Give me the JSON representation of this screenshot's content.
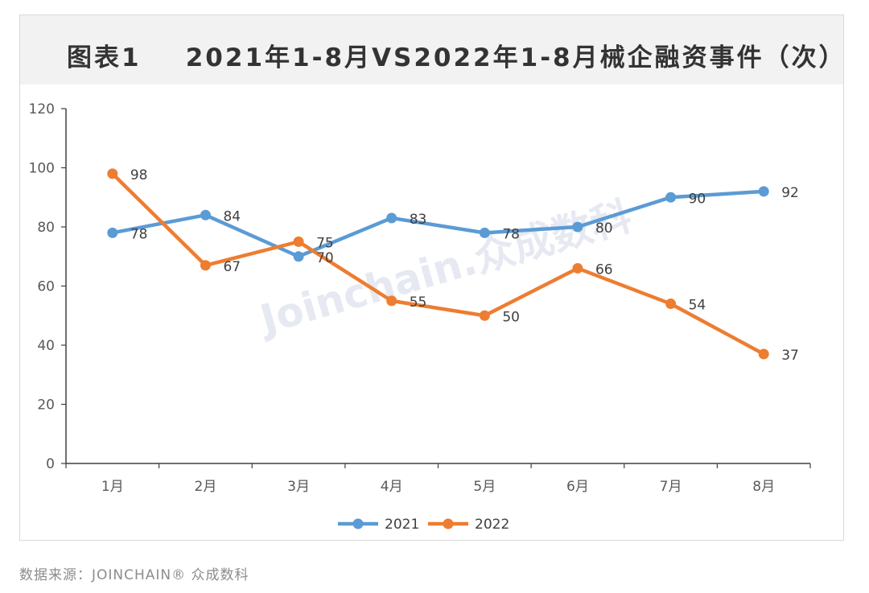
{
  "chart_data": {
    "type": "line",
    "title": "图表1    2021年1-8月VS2022年1-8月械企融资事件（次）",
    "categories": [
      "1月",
      "2月",
      "3月",
      "4月",
      "5月",
      "6月",
      "7月",
      "8月"
    ],
    "series": [
      {
        "name": "2021",
        "values": [
          78,
          84,
          70,
          83,
          78,
          80,
          90,
          92
        ],
        "color": "#5b9bd5"
      },
      {
        "name": "2022",
        "values": [
          98,
          67,
          75,
          55,
          50,
          66,
          54,
          37
        ],
        "color": "#ed7d31"
      }
    ],
    "ylim": [
      0,
      120
    ],
    "yticks": [
      0,
      20,
      40,
      60,
      80,
      100,
      120
    ],
    "xlabel": "",
    "ylabel": "",
    "legend": "bottom-center",
    "grid": false,
    "watermark": "Joinchain.众成数科"
  },
  "source": "数据来源：JOINCHAIN® 众成数科"
}
